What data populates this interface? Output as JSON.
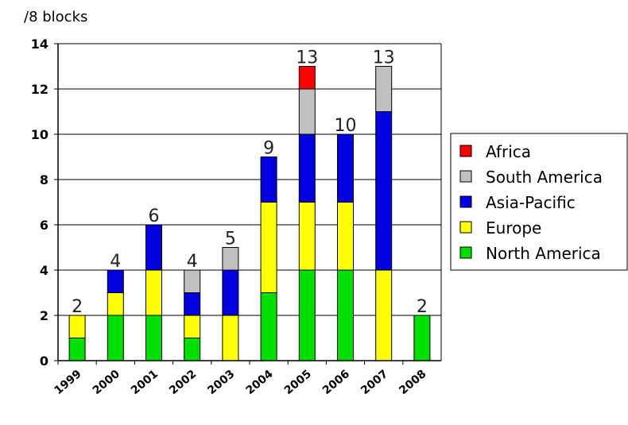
{
  "chart_data": {
    "type": "bar",
    "stacked": true,
    "title": "",
    "ylabel": "/8 blocks",
    "xlabel": "",
    "categories": [
      "1999",
      "2000",
      "2001",
      "2002",
      "2003",
      "2004",
      "2005",
      "2006",
      "2007",
      "2008"
    ],
    "ylim": [
      0,
      14
    ],
    "yticks": [
      0,
      2,
      4,
      6,
      8,
      10,
      12,
      14
    ],
    "grid": true,
    "legend_position": "right",
    "series": [
      {
        "name": "North America",
        "color": "#00e000",
        "values": [
          1,
          2,
          2,
          1,
          0,
          3,
          4,
          4,
          0,
          2
        ]
      },
      {
        "name": "Europe",
        "color": "#ffff00",
        "values": [
          1,
          1,
          2,
          1,
          2,
          4,
          3,
          3,
          4,
          0
        ]
      },
      {
        "name": "Asia-Pacific",
        "color": "#0000e0",
        "values": [
          0,
          1,
          2,
          1,
          2,
          2,
          3,
          3,
          7,
          0
        ]
      },
      {
        "name": "South America",
        "color": "#c0c0c0",
        "values": [
          0,
          0,
          0,
          1,
          1,
          0,
          2,
          0,
          2,
          0
        ]
      },
      {
        "name": "Africa",
        "color": "#ff0000",
        "values": [
          0,
          0,
          0,
          0,
          0,
          0,
          1,
          0,
          0,
          0
        ]
      }
    ],
    "totals": [
      2,
      4,
      6,
      4,
      5,
      9,
      13,
      10,
      13,
      2
    ],
    "legend_order": [
      "Africa",
      "South America",
      "Asia-Pacific",
      "Europe",
      "North America"
    ]
  }
}
